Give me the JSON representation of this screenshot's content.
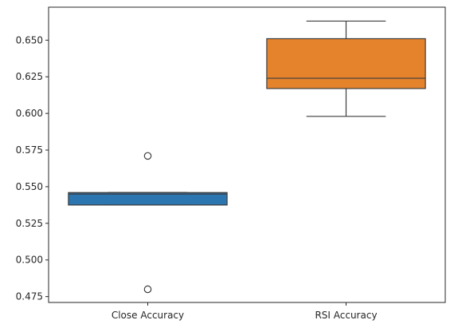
{
  "chart_data": {
    "type": "box",
    "title": "",
    "xlabel": "",
    "ylabel": "",
    "ylim": [
      0.471,
      0.6725
    ],
    "yticks": [
      0.475,
      0.5,
      0.525,
      0.55,
      0.575,
      0.6,
      0.625,
      0.65
    ],
    "ytick_labels": [
      "0.475",
      "0.500",
      "0.525",
      "0.550",
      "0.575",
      "0.600",
      "0.625",
      "0.650"
    ],
    "categories": [
      "Close Accuracy",
      "RSI Accuracy"
    ],
    "boxes": [
      {
        "name": "Close Accuracy",
        "color": "#2b75b0",
        "whisker_low": 0.5375,
        "q1": 0.5375,
        "median": 0.545,
        "q3": 0.546,
        "whisker_high": 0.546,
        "outliers": [
          0.571,
          0.48
        ]
      },
      {
        "name": "RSI Accuracy",
        "color": "#e5822c",
        "whisker_low": 0.598,
        "q1": 0.617,
        "median": 0.624,
        "q3": 0.651,
        "whisker_high": 0.663,
        "outliers": []
      }
    ],
    "grid": false,
    "legend": "none"
  }
}
